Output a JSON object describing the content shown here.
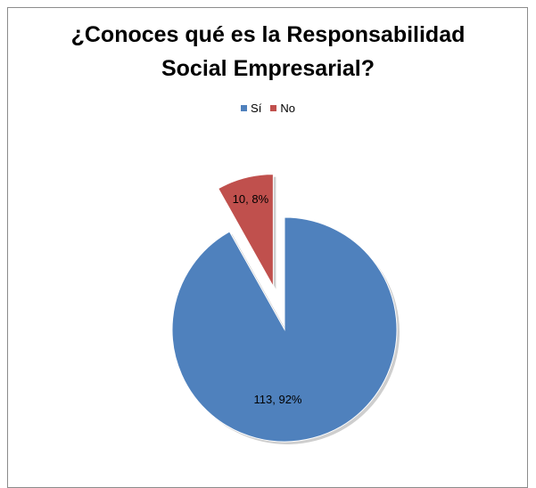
{
  "chart_data": {
    "type": "pie",
    "title_lines": [
      "¿Conoces qué es la Responsabilidad",
      "Social Empresarial?"
    ],
    "legend_placement": "top",
    "categories": [
      "Sí",
      "No"
    ],
    "values": [
      113,
      10
    ],
    "percentages": [
      "92%",
      "8%"
    ],
    "data_labels": [
      "113, 92%",
      "10, 8%"
    ],
    "colors": [
      "#4f81bd",
      "#c0504d"
    ],
    "exploded": [
      false,
      true
    ]
  }
}
